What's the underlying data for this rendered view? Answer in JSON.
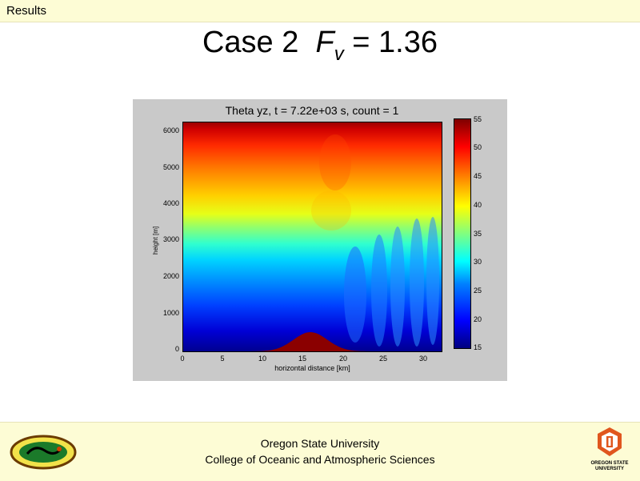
{
  "header": {
    "section_label": "Results"
  },
  "slide": {
    "title_prefix": "Case 2",
    "title_symbol": "F",
    "title_subscript": "v",
    "title_suffix": "= 1.36"
  },
  "chart_data": {
    "type": "heatmap",
    "title": "Theta yz, t = 7.22e+03 s, count = 1",
    "xlabel": "horizontal distance [km]",
    "ylabel": "height [m]",
    "xlim": [
      0,
      32.5
    ],
    "ylim": [
      0,
      6200
    ],
    "x_ticks": [
      "0",
      "5",
      "10",
      "15",
      "20",
      "25",
      "30"
    ],
    "y_ticks": [
      "0",
      "1000",
      "2000",
      "3000",
      "4000",
      "5000",
      "6000"
    ],
    "colorbar": {
      "min": 15,
      "max": 55,
      "ticks": [
        "15",
        "20",
        "25",
        "30",
        "35",
        "40",
        "45",
        "50",
        "55"
      ]
    },
    "terrain": {
      "peak_x_km": 16,
      "peak_height_m": 520,
      "half_width_km": 5
    },
    "colormap": "jet",
    "grid": false
  },
  "footer": {
    "line1": "Oregon State University",
    "line2": "College of Oceanic and Atmospheric Sciences",
    "osu_logo_line1": "OREGON STATE",
    "osu_logo_line2": "UNIVERSITY"
  },
  "colors": {
    "band_background": "#fdfcd5",
    "figure_background": "#c9c9c9",
    "terrain": "#8b0000"
  }
}
